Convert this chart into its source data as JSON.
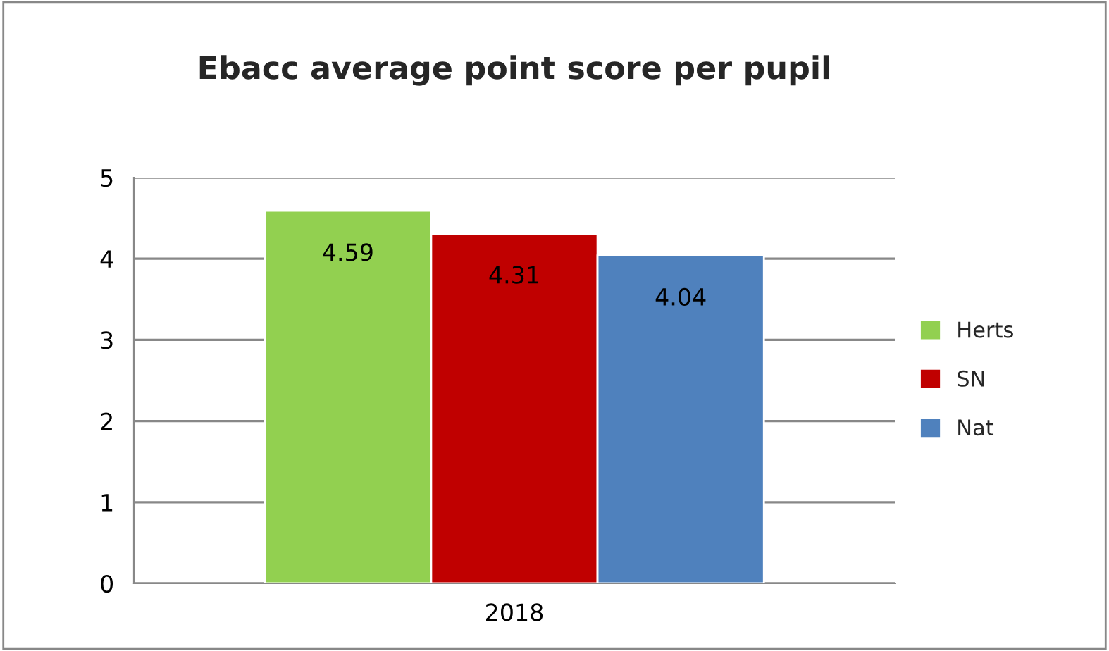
{
  "chart_data": {
    "type": "bar",
    "title": "Ebacc average point score per pupil",
    "categories": [
      "2018"
    ],
    "series": [
      {
        "name": "Herts",
        "color": "#92d050",
        "values": [
          4.59
        ]
      },
      {
        "name": "SN",
        "color": "#c00000",
        "values": [
          4.31
        ]
      },
      {
        "name": "Nat",
        "color": "#4f81bd",
        "values": [
          4.04
        ]
      }
    ],
    "ylim": [
      0,
      5
    ],
    "yticks": [
      0,
      1,
      2,
      3,
      4,
      5
    ],
    "grid": "y",
    "legend": "right",
    "data_labels": true
  }
}
